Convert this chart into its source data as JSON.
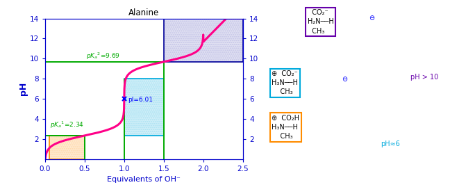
{
  "title": "Alanine",
  "xlabel": "Equivalents of OH⁻",
  "ylabel": "pH",
  "pka1": 2.34,
  "pka2": 9.69,
  "pI": 6.01,
  "xlim": [
    0.0,
    2.5
  ],
  "ylim": [
    0.0,
    14.0
  ],
  "yticks": [
    2.0,
    4.0,
    6.0,
    8.0,
    10.0,
    12.0,
    14.0
  ],
  "xticks": [
    0.0,
    0.5,
    1.0,
    1.5,
    2.0,
    2.5
  ],
  "curve_color": "#FF0088",
  "curve_linewidth": 2.2,
  "green_color": "#00AA00",
  "orange_box_color": "#FF8C00",
  "blue_box_color": "#00AADD",
  "purple_box_color": "#6600AA",
  "axis_color": "#0000CC",
  "title_color": "#000000",
  "background_color": "#FFFFFF",
  "dark_blue": "#000099"
}
